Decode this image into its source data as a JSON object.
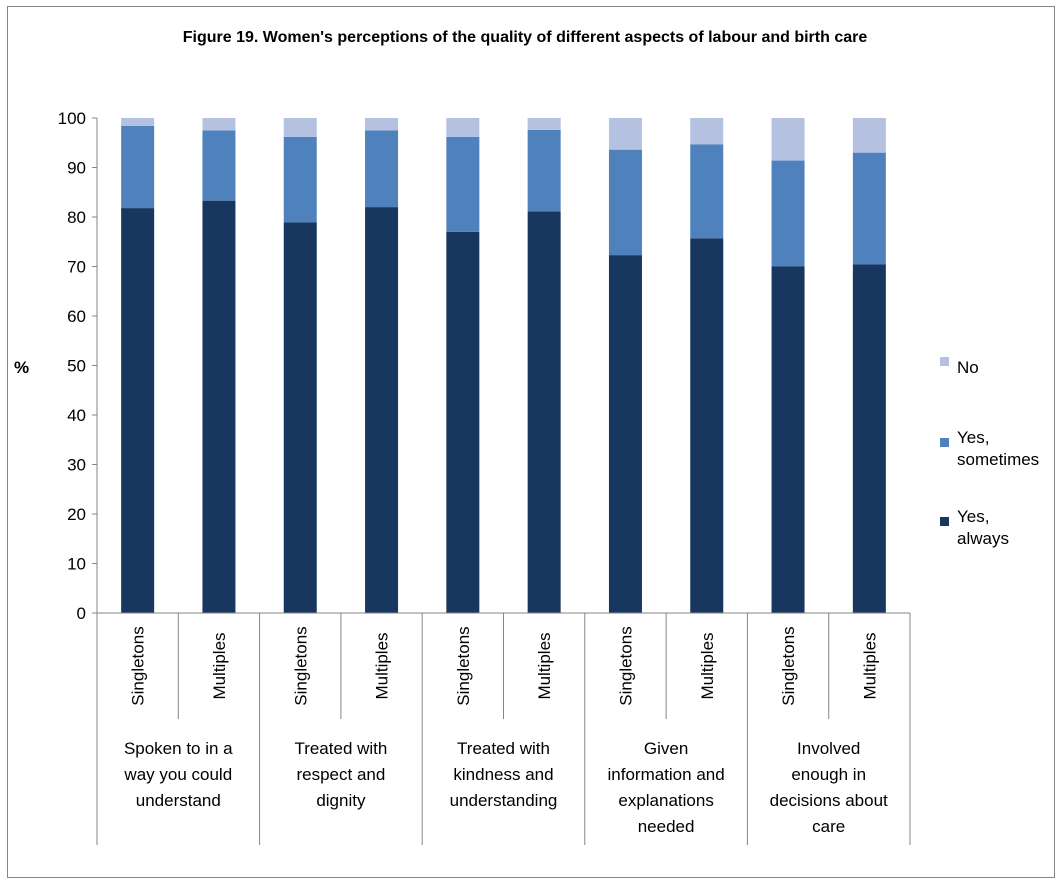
{
  "chart_data": {
    "type": "bar",
    "stacked": true,
    "title": "Figure 19. Women's perceptions of the quality of different aspects of labour and birth care",
    "ylabel": "%",
    "ylim": [
      0,
      100
    ],
    "yticks": [
      "0",
      "10",
      "20",
      "30",
      "40",
      "50",
      "60",
      "70",
      "80",
      "90",
      "100"
    ],
    "grid": false,
    "legend_position": "right",
    "groups": [
      {
        "label_lines": [
          "Spoken to in a",
          "way you could",
          "understand"
        ]
      },
      {
        "label_lines": [
          "Treated with",
          "respect and",
          "dignity"
        ]
      },
      {
        "label_lines": [
          "Treated with",
          "kindness and",
          "understanding"
        ]
      },
      {
        "label_lines": [
          "Given",
          "information and",
          "explanations",
          "needed"
        ]
      },
      {
        "label_lines": [
          "Involved",
          "enough in",
          "decisions about",
          "care"
        ]
      }
    ],
    "categories": [
      "Singletons",
      "Multiples",
      "Singletons",
      "Multiples",
      "Singletons",
      "Multiples",
      "Singletons",
      "Multiples",
      "Singletons",
      "Multiples"
    ],
    "series": [
      {
        "name": "Yes, always",
        "legend_lines": [
          "Yes,",
          "always"
        ],
        "color": "#17375e",
        "values": [
          81.8,
          83.3,
          78.9,
          82.0,
          77.0,
          81.1,
          72.3,
          75.7,
          70.0,
          70.4
        ]
      },
      {
        "name": "Yes, sometimes",
        "legend_lines": [
          "Yes,",
          "sometimes"
        ],
        "color": "#4f81bd",
        "values": [
          16.6,
          14.2,
          17.3,
          15.5,
          19.2,
          16.5,
          21.3,
          19.0,
          21.4,
          22.6
        ]
      },
      {
        "name": "No",
        "legend_lines": [
          "No"
        ],
        "color": "#b4c1e0",
        "values": [
          1.6,
          2.5,
          3.8,
          2.5,
          3.8,
          2.4,
          6.4,
          5.3,
          8.6,
          7.0
        ]
      }
    ]
  }
}
